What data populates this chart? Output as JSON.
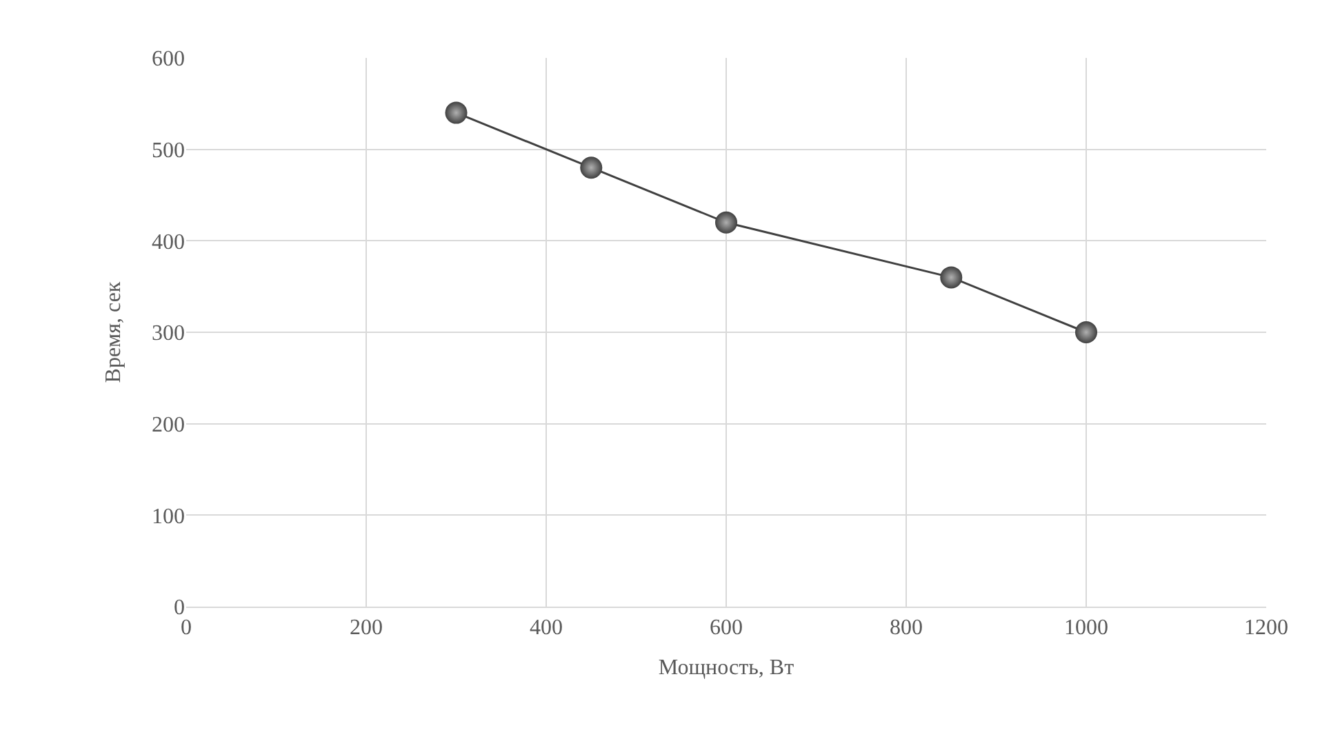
{
  "chart_data": {
    "type": "line",
    "xlabel": "Мощность, Вт",
    "ylabel": "Время, сек",
    "x": [
      300,
      450,
      600,
      850,
      1000
    ],
    "series": [
      {
        "color": "#404040",
        "values": [
          540,
          480,
          420,
          360,
          300
        ]
      }
    ],
    "xlim": [
      0,
      1200
    ],
    "xticks": [
      0,
      200,
      400,
      600,
      800,
      1000,
      1200
    ],
    "ylim": [
      0,
      600
    ],
    "yticks": [
      0,
      100,
      200,
      300,
      400,
      500,
      600
    ],
    "grid": true,
    "legend": false,
    "marker": "circle",
    "line_style": "solid"
  }
}
